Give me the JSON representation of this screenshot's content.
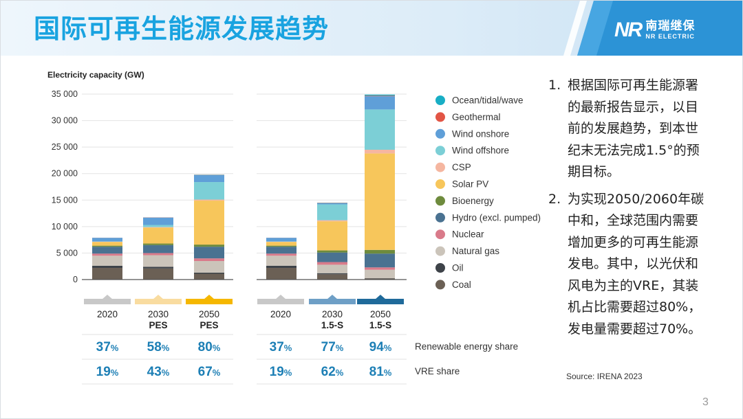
{
  "header": {
    "title": "国际可再生能源发展趋势",
    "logo_mark": "NR",
    "logo_cn": "南瑞继保",
    "logo_en": "NR ELECTRIC"
  },
  "colors": {
    "banner_title": "#19a3e0",
    "pes_accent": "#f5b700",
    "pes_light": "#f9dca0",
    "s15_accent": "#1f6a9a",
    "s15_light": "#6e9fc6",
    "base": "#c8c8c8",
    "share_text": "#1d7fb5"
  },
  "chart_data": {
    "type": "bar",
    "stacked": true,
    "title": "",
    "ylabel": "Electricity capacity (GW)",
    "ylim": [
      0,
      35000
    ],
    "yticks": [
      "0",
      "5 000",
      "10 000",
      "15 000",
      "20 000",
      "25 000",
      "30 000",
      "35 000"
    ],
    "ytick_values": [
      0,
      5000,
      10000,
      15000,
      20000,
      25000,
      30000,
      35000
    ],
    "groups": [
      {
        "name": "PES",
        "categories": [
          "2020",
          "2030",
          "2050"
        ],
        "sublabels": [
          "",
          "PES",
          "PES"
        ]
      },
      {
        "name": "1.5-S",
        "categories": [
          "2020",
          "2030",
          "2050"
        ],
        "sublabels": [
          "",
          "1.5-S",
          "1.5-S"
        ]
      }
    ],
    "series": [
      {
        "name": "Coal",
        "color": "#6b6055",
        "values": [
          2200,
          2100,
          1100,
          2200,
          1000,
          200
        ]
      },
      {
        "name": "Oil",
        "color": "#3e4349",
        "values": [
          400,
          300,
          200,
          400,
          200,
          50
        ]
      },
      {
        "name": "Natural gas",
        "color": "#cbc4ba",
        "values": [
          1900,
          2200,
          2200,
          1900,
          1600,
          1600
        ]
      },
      {
        "name": "Nuclear",
        "color": "#d97a8a",
        "values": [
          400,
          400,
          500,
          400,
          500,
          450
        ]
      },
      {
        "name": "Hydro (excl. pumped)",
        "color": "#4a7291",
        "values": [
          1300,
          1500,
          2200,
          1300,
          1800,
          2600
        ]
      },
      {
        "name": "Bioenergy",
        "color": "#6e8b3d",
        "values": [
          200,
          300,
          400,
          200,
          400,
          700
        ]
      },
      {
        "name": "Solar PV",
        "color": "#f7c65b",
        "values": [
          700,
          3000,
          8300,
          700,
          5500,
          18200
        ]
      },
      {
        "name": "CSP",
        "color": "#f5b6a0",
        "values": [
          50,
          100,
          200,
          50,
          200,
          700
        ]
      },
      {
        "name": "Wind offshore",
        "color": "#7ccfd6",
        "values": [
          30,
          400,
          3300,
          30,
          3000,
          7600
        ]
      },
      {
        "name": "Wind onshore",
        "color": "#5f9fd8",
        "values": [
          700,
          1400,
          1300,
          700,
          200,
          2500
        ]
      },
      {
        "name": "Geothermal",
        "color": "#e25545",
        "values": [
          15,
          30,
          50,
          15,
          50,
          100
        ]
      },
      {
        "name": "Ocean/tidal/wave",
        "color": "#18aec5",
        "values": [
          5,
          10,
          50,
          5,
          50,
          200
        ]
      }
    ],
    "legend_order": [
      "Ocean/tidal/wave",
      "Geothermal",
      "Wind onshore",
      "Wind offshore",
      "CSP",
      "Solar PV",
      "Bioenergy",
      "Hydro (excl. pumped)",
      "Nuclear",
      "Natural gas",
      "Oil",
      "Coal"
    ],
    "legend_position": "right",
    "rows": [
      {
        "label": "Renewable energy share",
        "values": [
          "37",
          "58",
          "80",
          "37",
          "77",
          "94"
        ],
        "unit": "%"
      },
      {
        "label": "VRE share",
        "values": [
          "19",
          "43",
          "67",
          "19",
          "62",
          "81"
        ],
        "unit": "%"
      }
    ]
  },
  "notes": [
    {
      "num": "1.",
      "text": "根据国际可再生能源署的最新报告显示，以目前的发展趋势，到本世纪末无法完成1.5°的预期目标。"
    },
    {
      "num": "2.",
      "text": "为实现2050/2060年碳中和，全球范围内需要增加更多的可再生能源发电。其中，以光伏和风电为主的VRE，其装机占比需要超过80%，发电量需要超过70%。"
    }
  ],
  "source": "Source: IRENA 2023",
  "page_number": "3"
}
